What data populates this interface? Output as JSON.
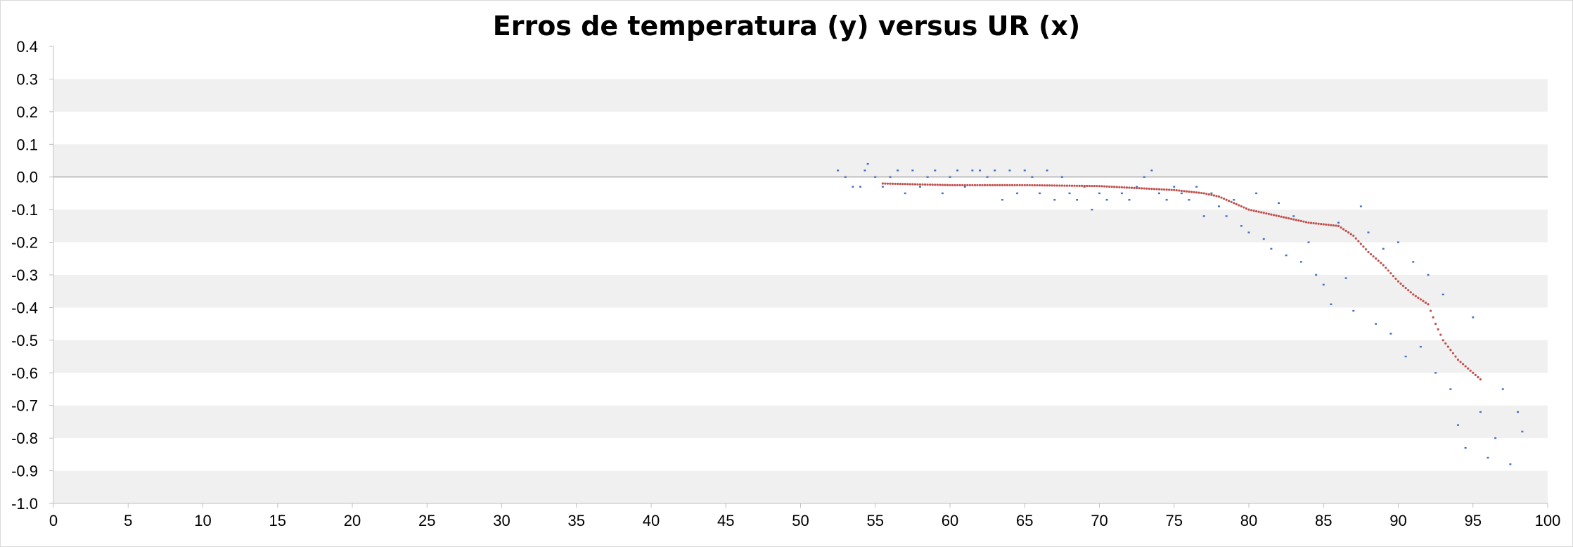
{
  "chart_data": {
    "type": "scatter",
    "title": "Erros de temperatura (y) versus UR (x)",
    "xlabel": "",
    "ylabel": "",
    "xlim": [
      0,
      100
    ],
    "ylim": [
      -1.0,
      0.4
    ],
    "x_ticks": [
      "0",
      "5",
      "10",
      "15",
      "20",
      "25",
      "30",
      "35",
      "40",
      "45",
      "50",
      "55",
      "60",
      "65",
      "70",
      "75",
      "80",
      "85",
      "90",
      "95",
      "100"
    ],
    "y_ticks": [
      "0.4",
      "0.3",
      "0.2",
      "0.1",
      "0.0",
      "-0.1",
      "-0.2",
      "-0.3",
      "-0.4",
      "-0.5",
      "-0.6",
      "-0.7",
      "-0.8",
      "-0.9",
      "-1.0"
    ],
    "grid": "alternating horizontal bands",
    "legend": "none",
    "colors": {
      "observed": "#4472c4",
      "fitted": "#c0504d",
      "band": "#f0f0f0",
      "zero_line": "#a6a6a6"
    },
    "series": [
      {
        "marker": "dot",
        "color": "#4472c4",
        "points": [
          [
            52.5,
            0.02
          ],
          [
            53.0,
            0.0
          ],
          [
            53.5,
            -0.03
          ],
          [
            54.0,
            -0.03
          ],
          [
            54.3,
            0.02
          ],
          [
            54.5,
            0.04
          ],
          [
            55.0,
            0.0
          ],
          [
            55.5,
            -0.03
          ],
          [
            56.0,
            0.0
          ],
          [
            56.5,
            0.02
          ],
          [
            57.0,
            -0.05
          ],
          [
            57.5,
            0.02
          ],
          [
            58.0,
            -0.03
          ],
          [
            58.5,
            0.0
          ],
          [
            59.0,
            0.02
          ],
          [
            59.5,
            -0.05
          ],
          [
            60.0,
            0.0
          ],
          [
            60.5,
            0.02
          ],
          [
            61.0,
            -0.03
          ],
          [
            61.5,
            0.02
          ],
          [
            62.0,
            0.02
          ],
          [
            62.5,
            0.0
          ],
          [
            63.0,
            0.02
          ],
          [
            63.5,
            -0.07
          ],
          [
            64.0,
            0.02
          ],
          [
            64.5,
            -0.05
          ],
          [
            65.0,
            0.02
          ],
          [
            65.5,
            0.0
          ],
          [
            66.0,
            -0.05
          ],
          [
            66.5,
            0.02
          ],
          [
            67.0,
            -0.07
          ],
          [
            67.5,
            0.0
          ],
          [
            68.0,
            -0.05
          ],
          [
            68.5,
            -0.07
          ],
          [
            69.0,
            -0.03
          ],
          [
            69.5,
            -0.1
          ],
          [
            70.0,
            -0.05
          ],
          [
            70.5,
            -0.07
          ],
          [
            71.0,
            -0.03
          ],
          [
            71.5,
            -0.05
          ],
          [
            72.0,
            -0.07
          ],
          [
            72.5,
            -0.03
          ],
          [
            73.0,
            0.0
          ],
          [
            73.5,
            0.02
          ],
          [
            74.0,
            -0.05
          ],
          [
            74.5,
            -0.07
          ],
          [
            75.0,
            -0.03
          ],
          [
            75.5,
            -0.05
          ],
          [
            76.0,
            -0.07
          ],
          [
            76.5,
            -0.03
          ],
          [
            77.0,
            -0.12
          ],
          [
            77.5,
            -0.05
          ],
          [
            78.0,
            -0.09
          ],
          [
            78.5,
            -0.12
          ],
          [
            79.0,
            -0.07
          ],
          [
            79.5,
            -0.15
          ],
          [
            80.0,
            -0.17
          ],
          [
            80.5,
            -0.05
          ],
          [
            81.0,
            -0.19
          ],
          [
            81.5,
            -0.22
          ],
          [
            82.0,
            -0.08
          ],
          [
            82.5,
            -0.24
          ],
          [
            83.0,
            -0.12
          ],
          [
            83.5,
            -0.26
          ],
          [
            84.0,
            -0.2
          ],
          [
            84.5,
            -0.3
          ],
          [
            85.0,
            -0.33
          ],
          [
            85.5,
            -0.39
          ],
          [
            86.0,
            -0.14
          ],
          [
            86.5,
            -0.31
          ],
          [
            87.0,
            -0.41
          ],
          [
            87.5,
            -0.09
          ],
          [
            88.0,
            -0.17
          ],
          [
            88.5,
            -0.45
          ],
          [
            89.0,
            -0.22
          ],
          [
            89.5,
            -0.48
          ],
          [
            90.0,
            -0.2
          ],
          [
            90.5,
            -0.55
          ],
          [
            91.0,
            -0.26
          ],
          [
            91.5,
            -0.52
          ],
          [
            92.0,
            -0.3
          ],
          [
            92.5,
            -0.6
          ],
          [
            93.0,
            -0.36
          ],
          [
            93.5,
            -0.65
          ],
          [
            94.0,
            -0.76
          ],
          [
            94.5,
            -0.83
          ],
          [
            95.0,
            -0.43
          ],
          [
            95.5,
            -0.72
          ],
          [
            96.0,
            -0.86
          ],
          [
            96.5,
            -0.8
          ],
          [
            97.0,
            -0.65
          ],
          [
            97.5,
            -0.88
          ],
          [
            98.0,
            -0.72
          ],
          [
            98.3,
            -0.78
          ]
        ]
      },
      {
        "marker": "line-of-dots",
        "color": "#c0504d",
        "points": [
          [
            55.5,
            -0.02
          ],
          [
            60,
            -0.025
          ],
          [
            65,
            -0.025
          ],
          [
            70,
            -0.028
          ],
          [
            75,
            -0.04
          ],
          [
            77,
            -0.05
          ],
          [
            78,
            -0.06
          ],
          [
            79,
            -0.08
          ],
          [
            80,
            -0.1
          ],
          [
            82,
            -0.12
          ],
          [
            84,
            -0.14
          ],
          [
            86,
            -0.15
          ],
          [
            87,
            -0.18
          ],
          [
            88,
            -0.23
          ],
          [
            89,
            -0.27
          ],
          [
            90,
            -0.32
          ],
          [
            91,
            -0.36
          ],
          [
            92,
            -0.39
          ],
          [
            92.5,
            -0.45
          ],
          [
            93,
            -0.5
          ],
          [
            94,
            -0.56
          ],
          [
            95.5,
            -0.62
          ]
        ]
      }
    ]
  }
}
